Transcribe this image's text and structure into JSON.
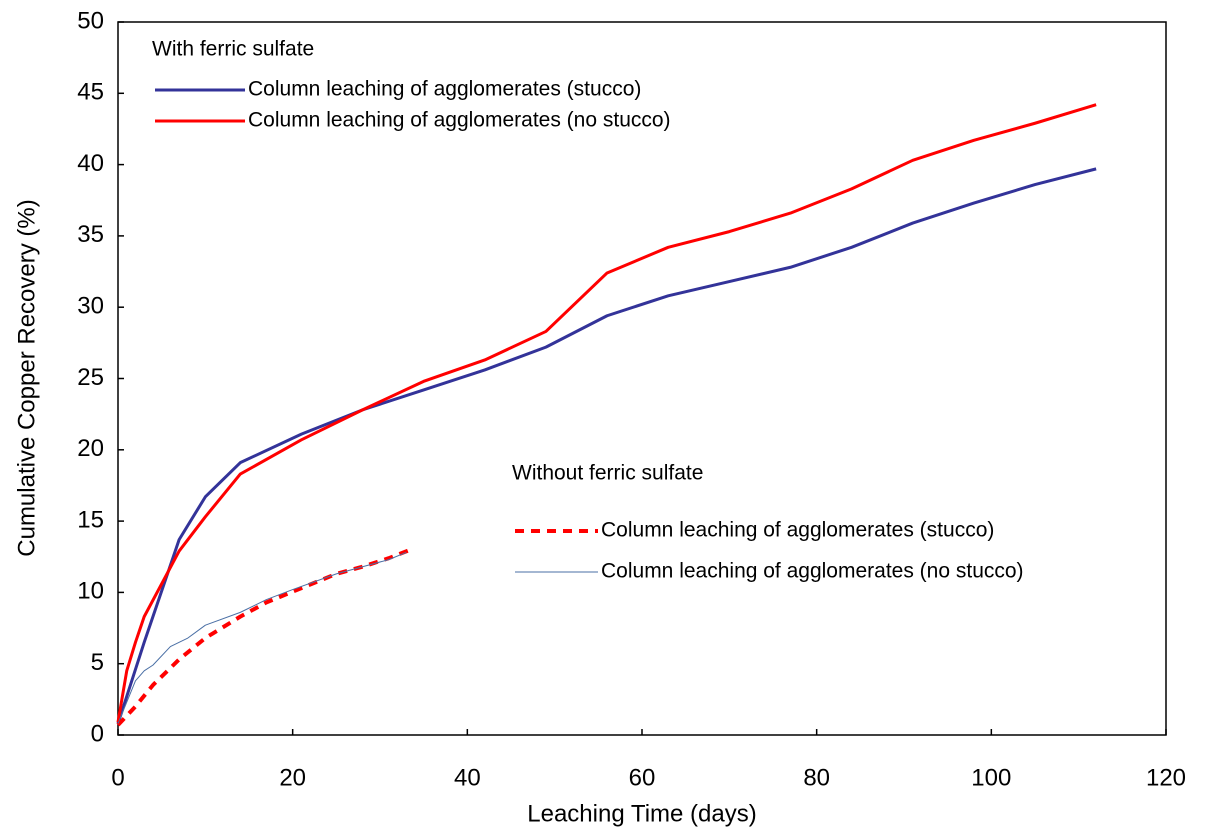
{
  "chart_data": {
    "type": "line",
    "x_label": "Leaching Time (days)",
    "y_label": "Cumulative Copper Recovery (%)",
    "xlim": [
      0,
      120
    ],
    "xticks": [
      0,
      20,
      40,
      60,
      80,
      100,
      120
    ],
    "ylim": [
      0,
      50
    ],
    "yticks": [
      0,
      5,
      10,
      15,
      20,
      25,
      30,
      35,
      40,
      45,
      50
    ],
    "grid": false,
    "legend_titles": [
      "With ferric sulfate",
      "Without ferric sulfate"
    ],
    "series": [
      {
        "name": "Column leaching of agglomerates (stucco)",
        "color": "#333399",
        "line_style": "solid",
        "x": [
          0,
          3,
          7,
          10,
          14,
          21,
          28,
          35,
          42,
          49,
          56,
          63,
          70,
          77,
          84,
          91,
          98,
          105,
          112
        ],
        "values": [
          0.8,
          6.5,
          13.7,
          16.7,
          19.1,
          21.1,
          22.8,
          24.2,
          25.6,
          27.2,
          29.4,
          30.8,
          31.8,
          32.8,
          34.2,
          35.9,
          37.3,
          38.6,
          39.7
        ]
      },
      {
        "name": "Column leaching of agglomerates (no stucco)",
        "color": "#ff0000",
        "line_style": "solid",
        "x": [
          0,
          1,
          2,
          3,
          7,
          10,
          14,
          21,
          28,
          35,
          42,
          49,
          56,
          63,
          70,
          77,
          84,
          91,
          98,
          105,
          112
        ],
        "values": [
          0.9,
          4.5,
          6.5,
          8.3,
          12.9,
          15.3,
          18.3,
          20.7,
          22.8,
          24.8,
          26.3,
          28.3,
          32.4,
          34.2,
          35.3,
          36.6,
          38.3,
          40.3,
          41.7,
          42.9,
          44.2
        ]
      },
      {
        "name": "Column leaching of agglomerates (stucco)",
        "color": "#ff0000",
        "line_style": "dashed",
        "x": [
          0,
          2,
          4,
          7,
          10,
          14,
          17,
          21,
          25,
          28,
          31,
          33.5
        ],
        "values": [
          0.7,
          2,
          3.5,
          5.3,
          6.8,
          8.3,
          9.3,
          10.3,
          11.3,
          11.8,
          12.4,
          13
        ]
      },
      {
        "name": "Column leaching of agglomerates (no stucco)",
        "color": "#4a6fa5",
        "line_style": "thin",
        "x": [
          0,
          2,
          3,
          4,
          6,
          8,
          10,
          14,
          17,
          20,
          25,
          28,
          31,
          33
        ],
        "values": [
          0.8,
          3.8,
          4.5,
          4.9,
          6.2,
          6.8,
          7.7,
          8.6,
          9.5,
          10.2,
          11.3,
          11.8,
          12.3,
          12.8
        ]
      }
    ]
  }
}
